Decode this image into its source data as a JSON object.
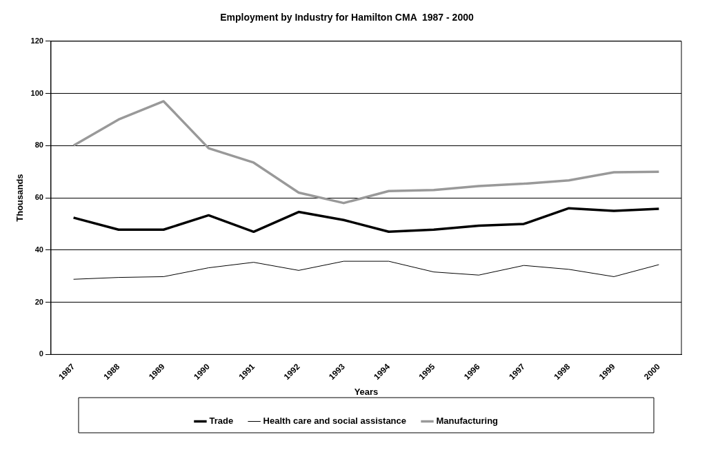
{
  "chart_data": {
    "type": "line",
    "title": "Employment by Industry for Hamilton CMA  1987 - 2000",
    "xlabel": "Years",
    "ylabel": "Thousands",
    "categories": [
      "1987",
      "1988",
      "1989",
      "1990",
      "1991",
      "1992",
      "1993",
      "1994",
      "1995",
      "1996",
      "1997",
      "1998",
      "1999",
      "2000"
    ],
    "series": [
      {
        "name": "Trade",
        "color": "#000000",
        "values": [
          52.4,
          47.8,
          47.8,
          53.3,
          47,
          54.6,
          51.5,
          47,
          47.8,
          49.3,
          50,
          56,
          55,
          55.8
        ]
      },
      {
        "name": "Health care and social assistance",
        "color": "#000000",
        "values": [
          28.8,
          29.5,
          29.8,
          33.2,
          35.3,
          32.2,
          35.7,
          35.7,
          31.6,
          30.4,
          34.1,
          32.6,
          29.8,
          34.4
        ]
      },
      {
        "name": "Manufacturing",
        "color": "#999999",
        "values": [
          80,
          90,
          97,
          79,
          73.5,
          62,
          58,
          62.6,
          63,
          64.5,
          65.4,
          66.7,
          69.8,
          70
        ]
      }
    ],
    "ylim": [
      0,
      120
    ],
    "yticks": [
      0,
      20,
      40,
      60,
      80,
      100,
      120
    ],
    "grid": "y",
    "legend": "bottom",
    "marker": "none",
    "line_style": "solid"
  }
}
